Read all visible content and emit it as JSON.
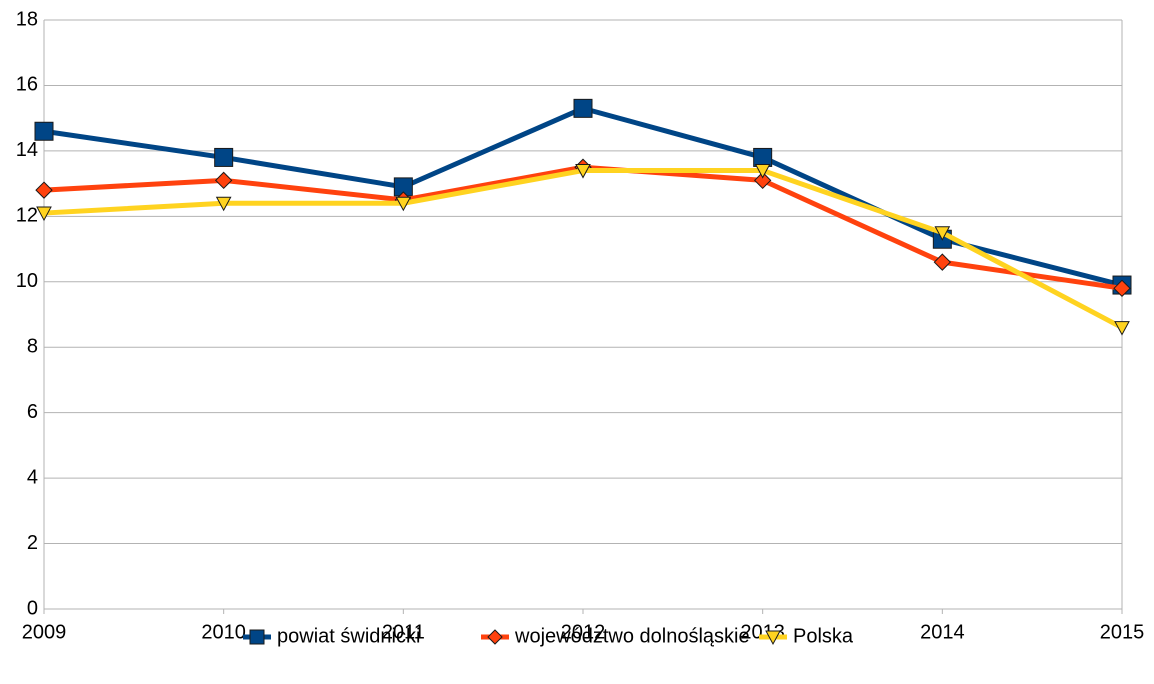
{
  "chart_data": {
    "type": "line",
    "x": [
      2009,
      2010,
      2011,
      2012,
      2013,
      2014,
      2015
    ],
    "xlim": [
      2009,
      2015
    ],
    "xticks": [
      2009,
      2010,
      2011,
      2012,
      2013,
      2014,
      2015
    ],
    "ylim": [
      0,
      18
    ],
    "yticks": [
      0,
      2,
      4,
      6,
      8,
      10,
      12,
      14,
      16,
      18
    ],
    "grid": true,
    "legend": "bottom",
    "series": [
      {
        "name": "powiat świdnicki",
        "color": "#004586",
        "marker": "square",
        "values": [
          14.6,
          13.8,
          12.9,
          15.3,
          13.8,
          11.3,
          9.9
        ]
      },
      {
        "name": "województwo dolnośląskie",
        "color": "#ff420e",
        "marker": "diamond",
        "values": [
          12.8,
          13.1,
          12.5,
          13.5,
          13.1,
          10.6,
          9.8
        ]
      },
      {
        "name": "Polska",
        "color": "#ffd320",
        "marker": "triangle-down",
        "values": [
          12.1,
          12.4,
          12.4,
          13.4,
          13.4,
          11.5,
          8.6
        ]
      }
    ]
  }
}
